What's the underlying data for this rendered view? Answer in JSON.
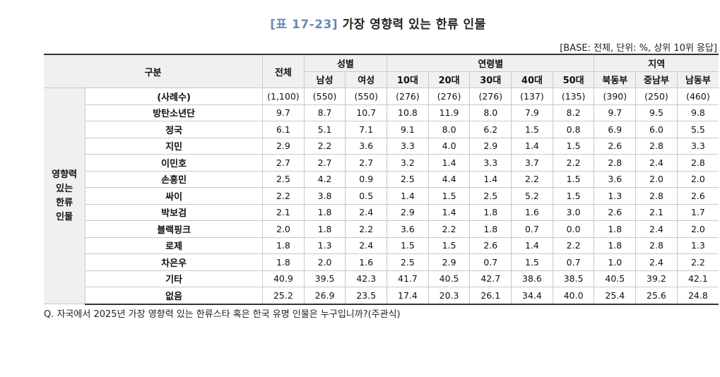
{
  "title": {
    "tag": "[표 17-23]",
    "text": "가장 영향력 있는 한류 인물"
  },
  "base_note": "[BASE: 전체, 단위: %, 상위 10위 응답]",
  "header": {
    "category": "구분",
    "total": "전체",
    "gender_group": "성별",
    "age_group": "연령별",
    "region_group": "지역",
    "columns": [
      "남성",
      "여성",
      "10대",
      "20대",
      "30대",
      "40대",
      "50대",
      "북동부",
      "중남부",
      "남동부"
    ]
  },
  "group_label": [
    "영향력",
    "있는",
    "한류",
    "인물"
  ],
  "count_row": {
    "label": "(사례수)",
    "values": [
      "(1,100)",
      "(550)",
      "(550)",
      "(276)",
      "(276)",
      "(276)",
      "(137)",
      "(135)",
      "(390)",
      "(250)",
      "(460)"
    ]
  },
  "rows": [
    {
      "label": "방탄소년단",
      "values": [
        "9.7",
        "8.7",
        "10.7",
        "10.8",
        "11.9",
        "8.0",
        "7.9",
        "8.2",
        "9.7",
        "9.5",
        "9.8"
      ]
    },
    {
      "label": "정국",
      "values": [
        "6.1",
        "5.1",
        "7.1",
        "9.1",
        "8.0",
        "6.2",
        "1.5",
        "0.8",
        "6.9",
        "6.0",
        "5.5"
      ]
    },
    {
      "label": "지민",
      "values": [
        "2.9",
        "2.2",
        "3.6",
        "3.3",
        "4.0",
        "2.9",
        "1.4",
        "1.5",
        "2.6",
        "2.8",
        "3.3"
      ]
    },
    {
      "label": "이민호",
      "values": [
        "2.7",
        "2.7",
        "2.7",
        "3.2",
        "1.4",
        "3.3",
        "3.7",
        "2.2",
        "2.8",
        "2.4",
        "2.8"
      ]
    },
    {
      "label": "손흥민",
      "values": [
        "2.5",
        "4.2",
        "0.9",
        "2.5",
        "4.4",
        "1.4",
        "2.2",
        "1.5",
        "3.6",
        "2.0",
        "2.0"
      ]
    },
    {
      "label": "싸이",
      "values": [
        "2.2",
        "3.8",
        "0.5",
        "1.4",
        "1.5",
        "2.5",
        "5.2",
        "1.5",
        "1.3",
        "2.8",
        "2.6"
      ]
    },
    {
      "label": "박보검",
      "values": [
        "2.1",
        "1.8",
        "2.4",
        "2.9",
        "1.4",
        "1.8",
        "1.6",
        "3.0",
        "2.6",
        "2.1",
        "1.7"
      ]
    },
    {
      "label": "블랙핑크",
      "values": [
        "2.0",
        "1.8",
        "2.2",
        "3.6",
        "2.2",
        "1.8",
        "0.7",
        "0.0",
        "1.8",
        "2.4",
        "2.0"
      ]
    },
    {
      "label": "로제",
      "values": [
        "1.8",
        "1.3",
        "2.4",
        "1.5",
        "1.5",
        "2.6",
        "1.4",
        "2.2",
        "1.8",
        "2.8",
        "1.3"
      ]
    },
    {
      "label": "차은우",
      "values": [
        "1.8",
        "2.0",
        "1.6",
        "2.5",
        "2.9",
        "0.7",
        "1.5",
        "0.7",
        "1.0",
        "2.4",
        "2.2"
      ]
    },
    {
      "label": "기타",
      "values": [
        "40.9",
        "39.5",
        "42.3",
        "41.7",
        "40.5",
        "42.7",
        "38.6",
        "38.5",
        "40.5",
        "39.2",
        "42.1"
      ]
    },
    {
      "label": "없음",
      "values": [
        "25.2",
        "26.9",
        "23.5",
        "17.4",
        "20.3",
        "26.1",
        "34.4",
        "40.0",
        "25.4",
        "25.6",
        "24.8"
      ]
    }
  ],
  "question": "Q. 자국에서 2025년 가장 영향력 있는 한류스타 혹은 한국 유명 인물은 누구입니까?(주관식)"
}
